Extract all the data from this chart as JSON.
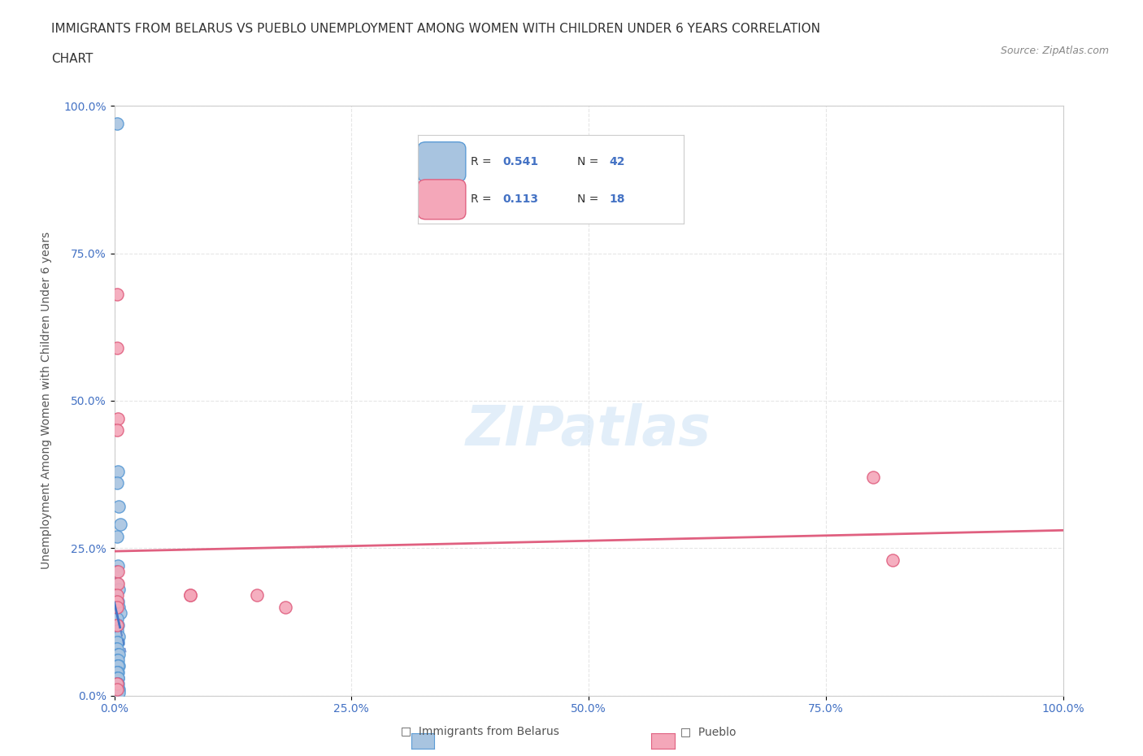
{
  "title_line1": "IMMIGRANTS FROM BELARUS VS PUEBLO UNEMPLOYMENT AMONG WOMEN WITH CHILDREN UNDER 6 YEARS CORRELATION",
  "title_line2": "CHART",
  "source": "Source: ZipAtlas.com",
  "xlabel": "Immigrants from Belarus",
  "ylabel": "Unemployment Among Women with Children Under 6 years",
  "xlim": [
    0,
    1.0
  ],
  "ylim": [
    0,
    1.0
  ],
  "xticks": [
    0.0,
    0.25,
    0.5,
    0.75,
    1.0
  ],
  "yticks": [
    0.0,
    0.25,
    0.5,
    0.75,
    1.0
  ],
  "xticklabels": [
    "0.0%",
    "25.0%",
    "50.0%",
    "75.0%",
    "100.0%"
  ],
  "yticklabels": [
    "0.0%",
    "25.0%",
    "50.0%",
    "75.0%",
    "100.0%"
  ],
  "blue_R": 0.541,
  "blue_N": 42,
  "pink_R": 0.113,
  "pink_N": 18,
  "blue_color": "#a8c4e0",
  "blue_edge_color": "#5b9bd5",
  "pink_color": "#f4a7b9",
  "pink_edge_color": "#e06080",
  "blue_trend_color": "#4472c4",
  "pink_trend_color": "#e06080",
  "blue_scatter_x": [
    0.003,
    0.004,
    0.003,
    0.005,
    0.006,
    0.003,
    0.004,
    0.002,
    0.003,
    0.005,
    0.004,
    0.003,
    0.005,
    0.006,
    0.003,
    0.004,
    0.003,
    0.005,
    0.004,
    0.003,
    0.002,
    0.003,
    0.004,
    0.005,
    0.003,
    0.004,
    0.003,
    0.005,
    0.004,
    0.003,
    0.004,
    0.003,
    0.004,
    0.003,
    0.004,
    0.003,
    0.004,
    0.003,
    0.005,
    0.004,
    0.003,
    0.005
  ],
  "blue_scatter_y": [
    0.97,
    0.38,
    0.36,
    0.32,
    0.29,
    0.27,
    0.22,
    0.21,
    0.19,
    0.18,
    0.16,
    0.15,
    0.15,
    0.14,
    0.13,
    0.12,
    0.11,
    0.1,
    0.09,
    0.09,
    0.08,
    0.08,
    0.07,
    0.07,
    0.06,
    0.06,
    0.05,
    0.05,
    0.05,
    0.04,
    0.04,
    0.04,
    0.03,
    0.03,
    0.03,
    0.02,
    0.02,
    0.02,
    0.01,
    0.01,
    0.01,
    0.005
  ],
  "pink_scatter_x": [
    0.003,
    0.003,
    0.004,
    0.003,
    0.004,
    0.004,
    0.003,
    0.003,
    0.003,
    0.003,
    0.08,
    0.08,
    0.15,
    0.18,
    0.8,
    0.82,
    0.003,
    0.003
  ],
  "pink_scatter_y": [
    0.68,
    0.59,
    0.47,
    0.45,
    0.21,
    0.19,
    0.17,
    0.16,
    0.15,
    0.12,
    0.17,
    0.17,
    0.17,
    0.15,
    0.37,
    0.23,
    0.02,
    0.01
  ],
  "watermark": "ZIPatlas",
  "background_color": "#ffffff",
  "grid_color": "#e0e0e0"
}
